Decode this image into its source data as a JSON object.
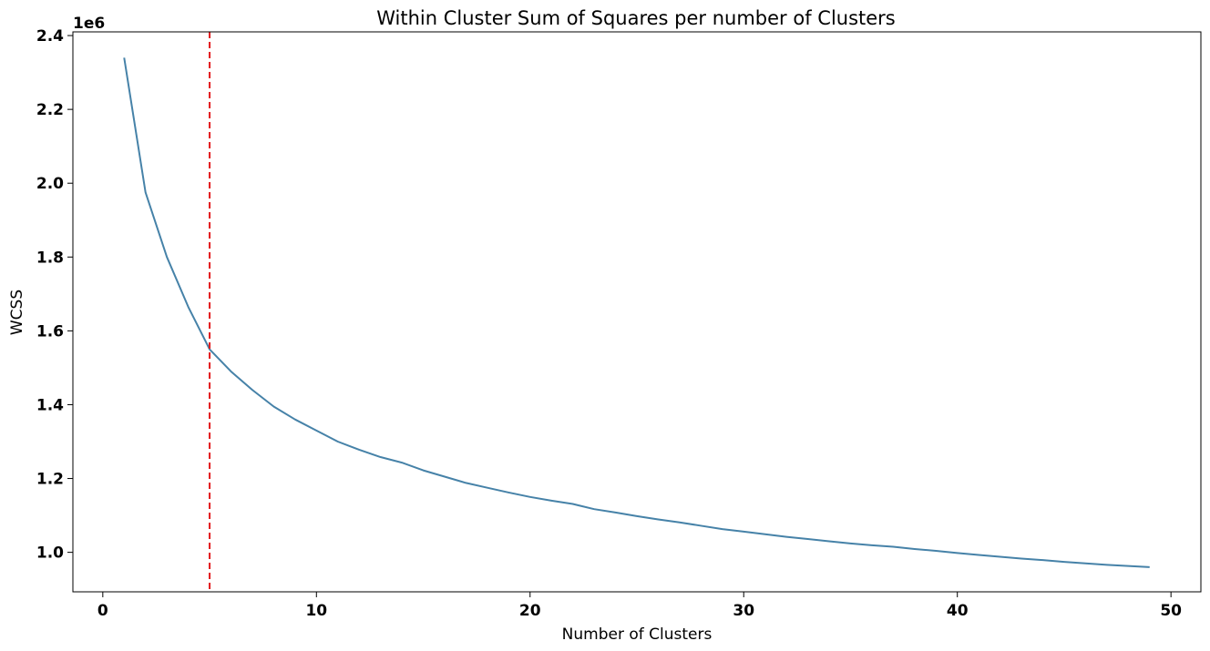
{
  "chart_data": {
    "type": "line",
    "title": "Within Cluster Sum of Squares per number of Clusters",
    "xlabel": "Number of Clusters",
    "ylabel": "WCSS",
    "y_offset_label": "1e6",
    "xlim": [
      -1.4,
      51.4
    ],
    "ylim": [
      0.893,
      2.41
    ],
    "x_ticks": [
      0,
      10,
      20,
      30,
      40,
      50
    ],
    "x_tick_labels": [
      "0",
      "10",
      "20",
      "30",
      "40",
      "50"
    ],
    "y_ticks": [
      1.0,
      1.2,
      1.4,
      1.6,
      1.8,
      2.0,
      2.2,
      2.4
    ],
    "y_tick_labels": [
      "1.0",
      "1.2",
      "1.4",
      "1.6",
      "1.8",
      "2.0",
      "2.2",
      "2.4"
    ],
    "grid": false,
    "series": [
      {
        "color": "#4682a8",
        "x": [
          1,
          2,
          3,
          4,
          5,
          6,
          7,
          8,
          9,
          10,
          11,
          12,
          13,
          14,
          15,
          16,
          17,
          18,
          19,
          20,
          21,
          22,
          23,
          24,
          25,
          26,
          27,
          28,
          29,
          30,
          31,
          32,
          33,
          34,
          35,
          36,
          37,
          38,
          39,
          40,
          41,
          42,
          43,
          44,
          45,
          46,
          47,
          48,
          49
        ],
        "values": [
          2.34,
          1.975,
          1.8,
          1.665,
          1.55,
          1.49,
          1.44,
          1.395,
          1.36,
          1.33,
          1.3,
          1.278,
          1.258,
          1.243,
          1.222,
          1.205,
          1.188,
          1.175,
          1.162,
          1.15,
          1.14,
          1.131,
          1.117,
          1.108,
          1.098,
          1.089,
          1.081,
          1.072,
          1.063,
          1.056,
          1.049,
          1.042,
          1.036,
          1.03,
          1.024,
          1.019,
          1.015,
          1.009,
          1.004,
          0.998,
          0.993,
          0.988,
          0.983,
          0.979,
          0.974,
          0.97,
          0.966,
          0.963,
          0.96
        ]
      }
    ],
    "annotations": [
      {
        "type": "vline",
        "x": 5,
        "color": "#e31a1c",
        "style": "dashed"
      }
    ]
  }
}
